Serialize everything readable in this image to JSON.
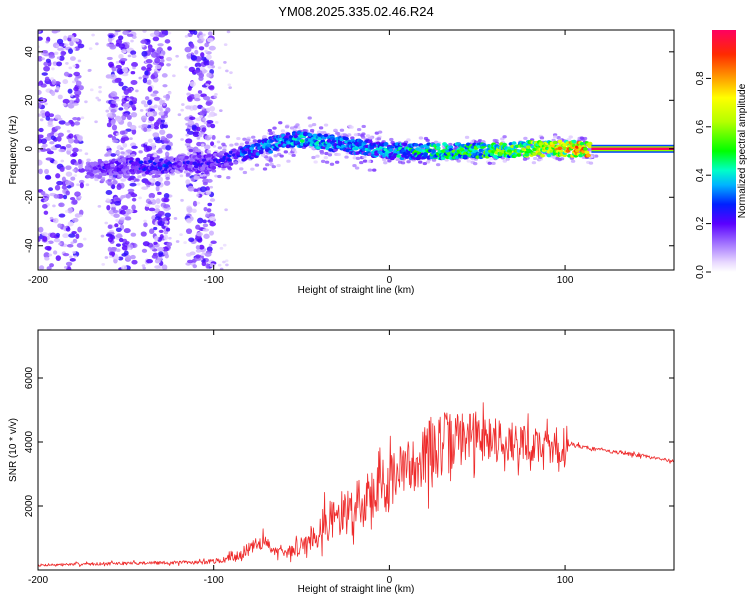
{
  "figure_title": "YM08.2025.335.02.46.R24",
  "colors": {
    "snr_line": "#ee2a2a",
    "frame": "#000000",
    "background": "#ffffff"
  },
  "chart_data": [
    {
      "type": "heatmap",
      "title": "YM08.2025.335.02.46.R24",
      "xlabel": "Height of straight line (km)",
      "ylabel": "Frequency (Hz)",
      "xlim": [
        -200,
        162
      ],
      "ylim": [
        -50,
        49
      ],
      "x_ticks": [
        -200,
        -100,
        0,
        100
      ],
      "x_tick_labels": [
        "-200",
        "-100",
        "0",
        "100"
      ],
      "y_ticks": [
        -40,
        -20,
        0,
        20,
        40
      ],
      "y_tick_labels": [
        "-40",
        "-20",
        "0",
        "20",
        "40"
      ],
      "colorbar": {
        "label": "Normalized spectral amplitude",
        "range": [
          0,
          1
        ],
        "ticks": [
          0.0,
          0.2,
          0.4,
          0.6,
          0.8
        ],
        "tick_labels": [
          "0.0",
          "0.2",
          "0.4",
          "0.6",
          "0.8"
        ]
      },
      "ridge": {
        "x": [
          -170,
          -160,
          -150,
          -140,
          -130,
          -120,
          -110,
          -100,
          -90,
          -80,
          -70,
          -60,
          -50,
          -40,
          -30,
          -20,
          -10,
          0,
          20,
          40,
          60,
          80,
          100,
          115,
          162
        ],
        "freq": [
          -9,
          -8,
          -7,
          -7,
          -7,
          -6,
          -6,
          -5,
          -4,
          -1,
          1,
          3,
          4,
          3,
          2,
          1,
          0,
          -1,
          -1,
          -1,
          -1,
          0,
          0,
          0,
          0
        ],
        "amplitude": [
          0.2,
          0.25,
          0.25,
          0.3,
          0.3,
          0.25,
          0.25,
          0.25,
          0.3,
          0.35,
          0.4,
          0.4,
          0.45,
          0.45,
          0.4,
          0.4,
          0.4,
          0.45,
          0.5,
          0.55,
          0.6,
          0.7,
          0.8,
          0.9,
          1.0
        ]
      },
      "noise_bands": [
        [
          -200,
          -175
        ],
        [
          -160,
          -145
        ],
        [
          -140,
          -125
        ],
        [
          -115,
          -100
        ]
      ]
    },
    {
      "type": "line",
      "xlabel": "Height of straight line (km)",
      "ylabel": "SNR (10 * v/v)",
      "xlim": [
        -200,
        162
      ],
      "ylim": [
        0,
        7500
      ],
      "x_ticks": [
        -200,
        -100,
        0,
        100
      ],
      "x_tick_labels": [
        "-200",
        "-100",
        "0",
        "100"
      ],
      "y_ticks": [
        2000,
        4000,
        6000
      ],
      "y_tick_labels": [
        "2000",
        "4000",
        "6000"
      ],
      "series": [
        {
          "name": "SNR",
          "x": [
            -200,
            -180,
            -160,
            -140,
            -120,
            -105,
            -95,
            -85,
            -78,
            -72,
            -66,
            -60,
            -52,
            -45,
            -40,
            -30,
            -20,
            -10,
            0,
            10,
            20,
            28,
            35,
            40,
            50,
            60,
            70,
            80,
            90,
            100,
            102,
            110,
            120,
            140,
            162
          ],
          "base": [
            150,
            180,
            200,
            220,
            230,
            250,
            300,
            500,
            700,
            900,
            650,
            500,
            700,
            1000,
            1300,
            1700,
            2000,
            2400,
            2800,
            3200,
            3600,
            3900,
            4000,
            4100,
            4200,
            4100,
            4000,
            3900,
            3900,
            3800,
            3950,
            3850,
            3750,
            3600,
            3400
          ],
          "amp": [
            70,
            80,
            90,
            90,
            100,
            120,
            150,
            300,
            400,
            450,
            300,
            250,
            500,
            800,
            1000,
            1200,
            1300,
            1400,
            1500,
            1600,
            1800,
            2000,
            1700,
            1500,
            1400,
            1300,
            1200,
            1100,
            1000,
            1200,
            150,
            120,
            110,
            100,
            90
          ]
        }
      ]
    }
  ]
}
